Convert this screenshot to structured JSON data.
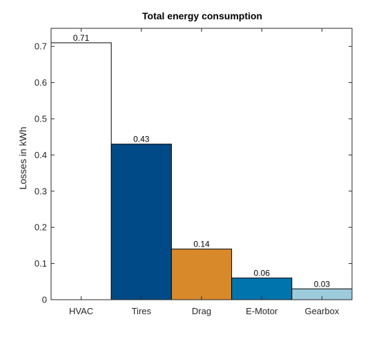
{
  "chart_data": {
    "type": "bar",
    "title": "Total energy consumption",
    "xlabel": "",
    "ylabel": "Losses in kWh",
    "categories": [
      "HVAC",
      "Tires",
      "Drag",
      "E-Motor",
      "Gearbox"
    ],
    "values": [
      0.71,
      0.43,
      0.14,
      0.06,
      0.03
    ],
    "data_labels": [
      "0.71",
      "0.43",
      "0.14",
      "0.06",
      "0.03"
    ],
    "colors": [
      "#ffffff",
      "#004a87",
      "#d8892a",
      "#0074ad",
      "#9ecbdc"
    ],
    "ylim": [
      0,
      0.75
    ],
    "yticks": [
      0,
      0.1,
      0.2,
      0.3,
      0.4,
      0.5,
      0.6,
      0.7
    ],
    "ytick_labels": [
      "0",
      "0.1",
      "0.2",
      "0.3",
      "0.4",
      "0.5",
      "0.6",
      "0.7"
    ],
    "grid": false,
    "legend": "none",
    "box": true
  }
}
